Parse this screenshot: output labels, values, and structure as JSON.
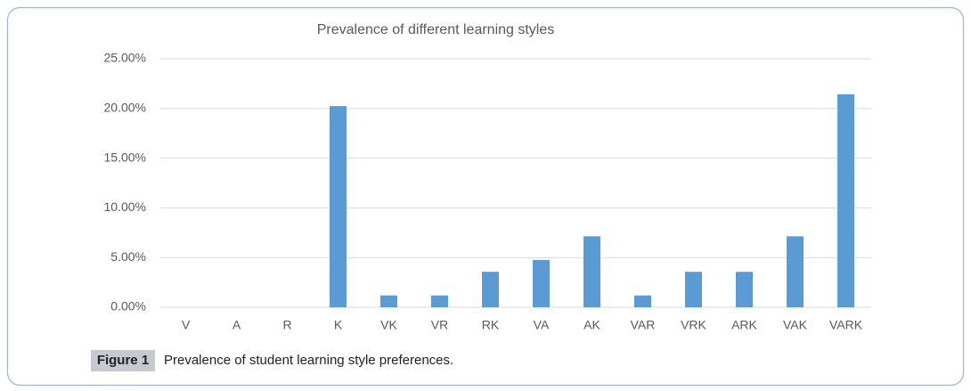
{
  "chart_data": {
    "type": "bar",
    "title": "Prevalence of different learning styles",
    "categories": [
      "V",
      "A",
      "R",
      "K",
      "VK",
      "VR",
      "RK",
      "VA",
      "AK",
      "VAR",
      "VRK",
      "ARK",
      "VAK",
      "VARK"
    ],
    "values": [
      0,
      0,
      0,
      20.24,
      1.19,
      1.19,
      3.57,
      4.76,
      7.14,
      1.19,
      3.57,
      3.57,
      7.14,
      21.43
    ],
    "color": "#5b9bd5",
    "ylim": [
      0,
      25
    ],
    "yticks": [
      {
        "value": 0,
        "label": "0.00%"
      },
      {
        "value": 5,
        "label": "5.00%"
      },
      {
        "value": 10,
        "label": "10.00%"
      },
      {
        "value": 15,
        "label": "15.00%"
      },
      {
        "value": 20,
        "label": "20.00%"
      },
      {
        "value": 25,
        "label": "25.00%"
      }
    ],
    "grid": true
  },
  "caption": {
    "label": "Figure 1",
    "text": "Prevalence of student learning style preferences."
  }
}
